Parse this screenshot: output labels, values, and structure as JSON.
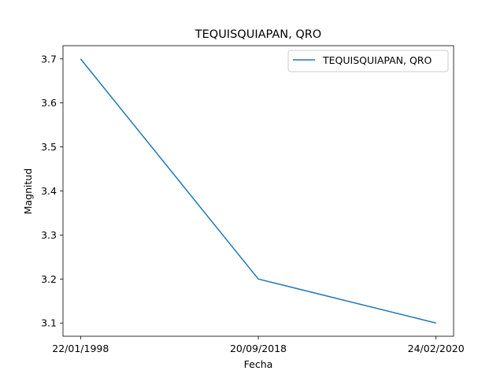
{
  "chart_data": {
    "type": "line",
    "title": "TEQUISQUIAPAN, QRO",
    "xlabel": "Fecha",
    "ylabel": "Magnitud",
    "categories": [
      "22/01/1998",
      "20/09/2018",
      "24/02/2020"
    ],
    "series": [
      {
        "name": "TEQUISQUIAPAN, QRO",
        "values": [
          3.7,
          3.2,
          3.1
        ],
        "color": "#1f77b4"
      }
    ],
    "yticks": [
      "3.1",
      "3.2",
      "3.3",
      "3.4",
      "3.5",
      "3.6",
      "3.7"
    ],
    "ylim": [
      3.07,
      3.73
    ],
    "grid": false,
    "legend": "top-right"
  }
}
